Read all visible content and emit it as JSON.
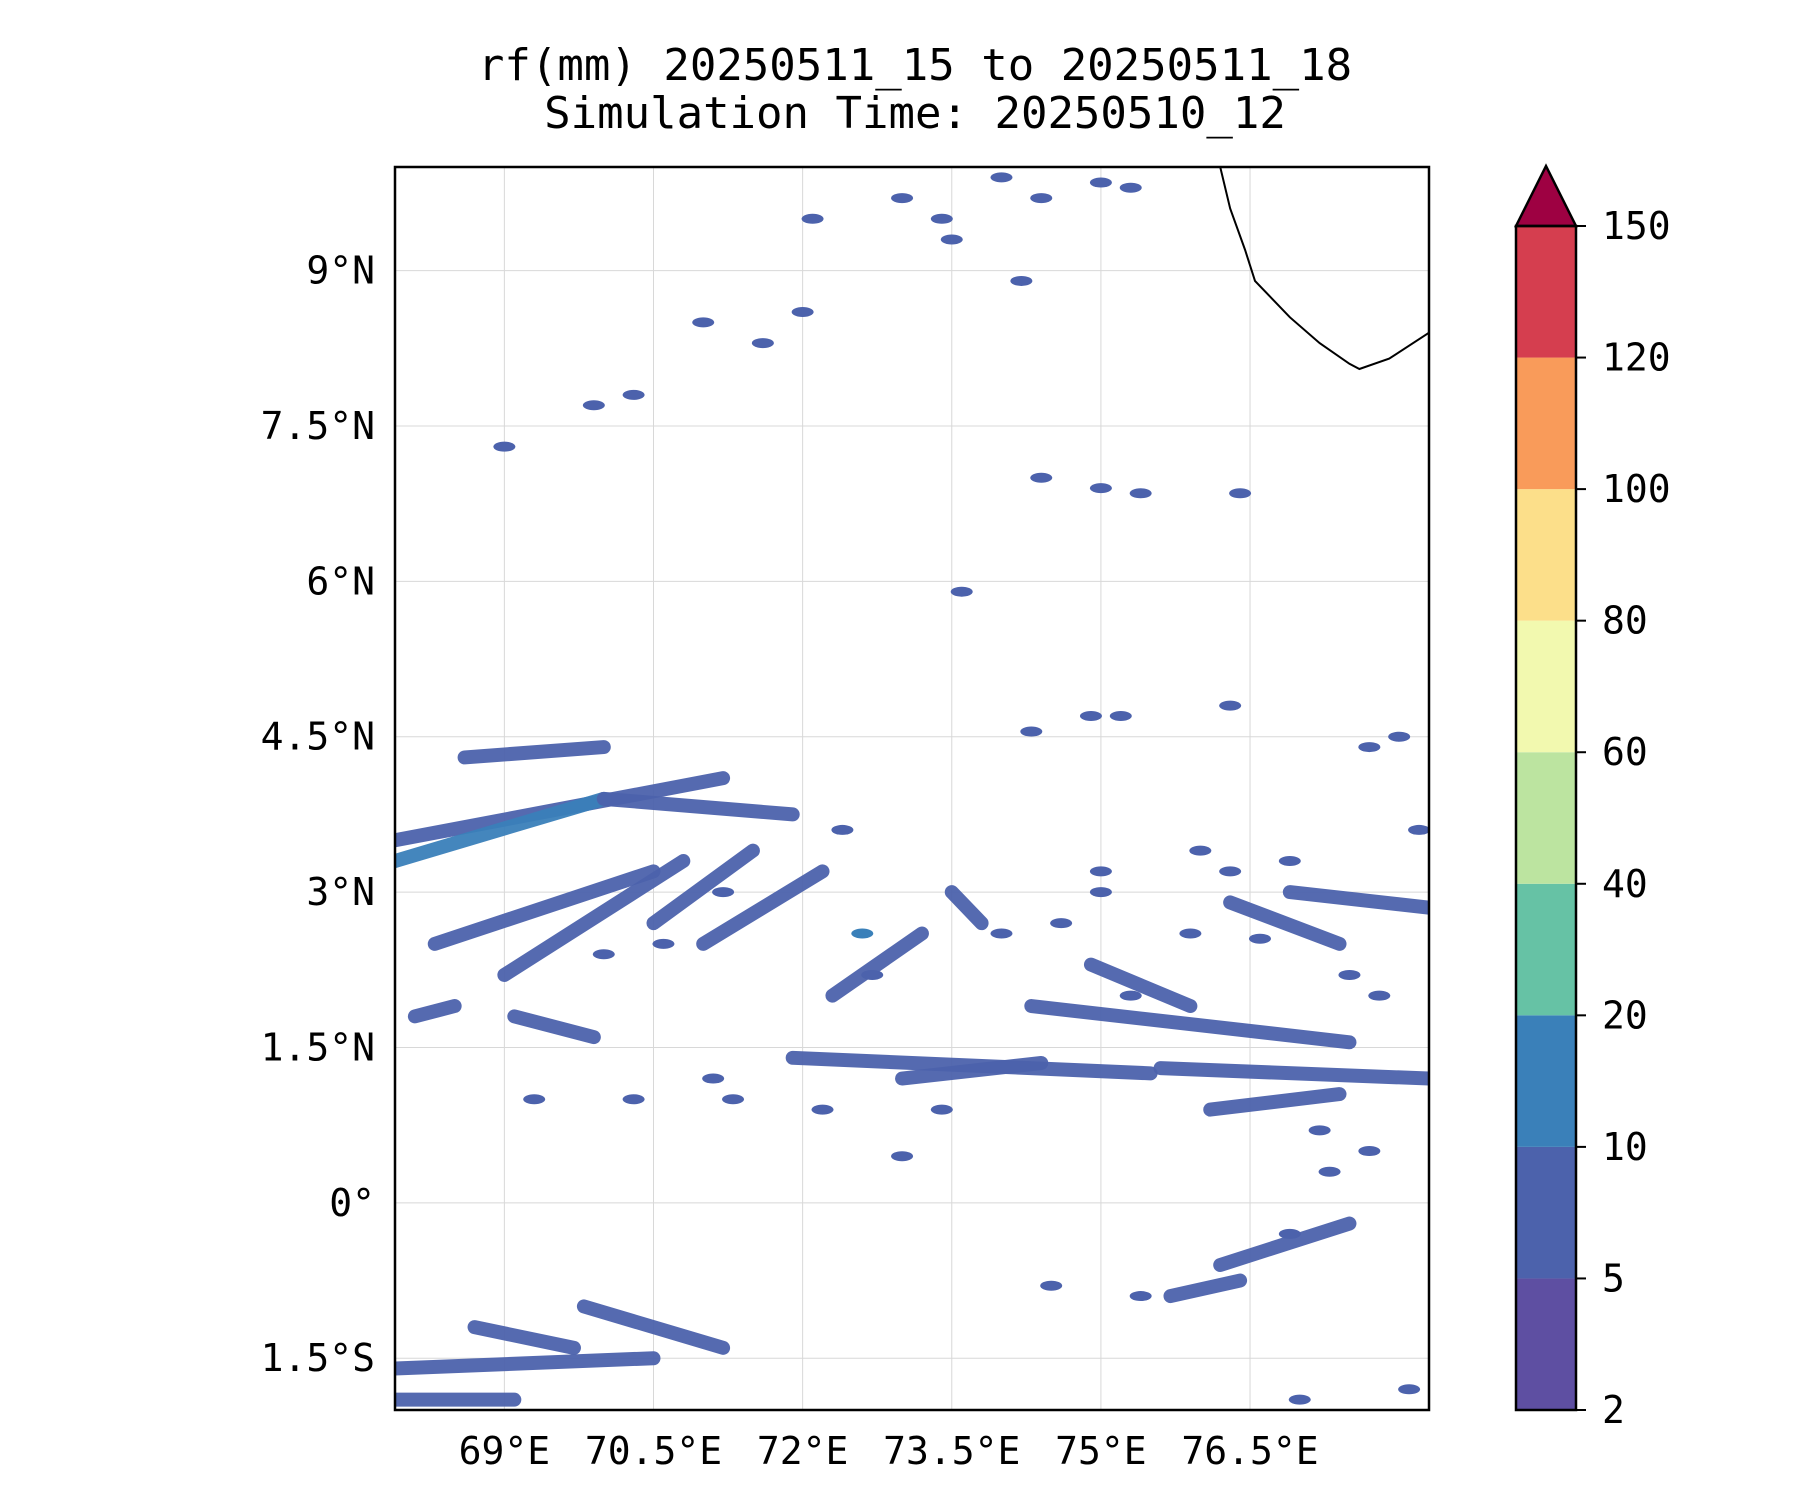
{
  "figure": {
    "title_line1": "rf(mm) 20250511_15 to 20250511_18",
    "title_line2": "Simulation Time: 20250510_12"
  },
  "map": {
    "lon_range": [
      67.9,
      78.3
    ],
    "lat_range": [
      -2.0,
      10.0
    ],
    "x_ticks": [
      {
        "value": 69.0,
        "label": "69°E"
      },
      {
        "value": 70.5,
        "label": "70.5°E"
      },
      {
        "value": 72.0,
        "label": "72°E"
      },
      {
        "value": 73.5,
        "label": "73.5°E"
      },
      {
        "value": 75.0,
        "label": "75°E"
      },
      {
        "value": 76.5,
        "label": "76.5°E"
      }
    ],
    "y_ticks": [
      {
        "value": 9.0,
        "label": "9°N"
      },
      {
        "value": 7.5,
        "label": "7.5°N"
      },
      {
        "value": 6.0,
        "label": "6°N"
      },
      {
        "value": 4.5,
        "label": "4.5°N"
      },
      {
        "value": 3.0,
        "label": "3°N"
      },
      {
        "value": 1.5,
        "label": "1.5°N"
      },
      {
        "value": 0.0,
        "label": "0°"
      },
      {
        "value": -1.5,
        "label": "1.5°S"
      }
    ],
    "gridlines": true
  },
  "colorbar": {
    "extend": "max",
    "levels": [
      {
        "value": 2,
        "label": "2"
      },
      {
        "value": 5,
        "label": "5"
      },
      {
        "value": 10,
        "label": "10"
      },
      {
        "value": 20,
        "label": "20"
      },
      {
        "value": 40,
        "label": "40"
      },
      {
        "value": 60,
        "label": "60"
      },
      {
        "value": 80,
        "label": "80"
      },
      {
        "value": 100,
        "label": "100"
      },
      {
        "value": 120,
        "label": "120"
      },
      {
        "value": 150,
        "label": "150"
      }
    ],
    "colors": [
      "#5e4fa2",
      "#4c62ac",
      "#3a80b9",
      "#66c2a5",
      "#bce4a0",
      "#f2f9af",
      "#fcdf8a",
      "#f99b5a",
      "#d53e4f"
    ],
    "extend_color": "#9e0142"
  },
  "chart_data": {
    "type": "heatmap",
    "variable": "rf(mm)",
    "colorbar_max_arrow": true,
    "rain_bands": [
      {
        "from": [
          67.9,
          3.5
        ],
        "to": [
          71.2,
          4.1
        ],
        "value": 5
      },
      {
        "from": [
          67.9,
          3.3
        ],
        "to": [
          70.0,
          3.9
        ],
        "value": 10
      },
      {
        "from": [
          68.6,
          4.3
        ],
        "to": [
          70.0,
          4.4
        ],
        "value": 5
      },
      {
        "from": [
          70.0,
          3.9
        ],
        "to": [
          71.9,
          3.75
        ],
        "value": 5
      },
      {
        "from": [
          68.3,
          2.5
        ],
        "to": [
          70.5,
          3.2
        ],
        "value": 5
      },
      {
        "from": [
          69.0,
          2.2
        ],
        "to": [
          70.8,
          3.3
        ],
        "value": 5
      },
      {
        "from": [
          70.5,
          2.7
        ],
        "to": [
          71.5,
          3.4
        ],
        "value": 5
      },
      {
        "from": [
          71.0,
          2.5
        ],
        "to": [
          72.2,
          3.2
        ],
        "value": 5
      },
      {
        "from": [
          72.3,
          2.0
        ],
        "to": [
          73.2,
          2.6
        ],
        "value": 5
      },
      {
        "from": [
          69.1,
          1.8
        ],
        "to": [
          69.9,
          1.6
        ],
        "value": 5
      },
      {
        "from": [
          68.1,
          1.8
        ],
        "to": [
          68.5,
          1.9
        ],
        "value": 5
      },
      {
        "from": [
          71.9,
          1.4
        ],
        "to": [
          75.5,
          1.25
        ],
        "value": 5
      },
      {
        "from": [
          73.0,
          1.2
        ],
        "to": [
          74.4,
          1.35
        ],
        "value": 5
      },
      {
        "from": [
          74.3,
          1.9
        ],
        "to": [
          77.5,
          1.55
        ],
        "value": 5
      },
      {
        "from": [
          75.6,
          1.3
        ],
        "to": [
          78.3,
          1.2
        ],
        "value": 5
      },
      {
        "from": [
          76.9,
          3.0
        ],
        "to": [
          78.3,
          2.85
        ],
        "value": 5
      },
      {
        "from": [
          76.1,
          0.9
        ],
        "to": [
          77.4,
          1.05
        ],
        "value": 5
      },
      {
        "from": [
          74.9,
          2.3
        ],
        "to": [
          75.9,
          1.9
        ],
        "value": 5
      },
      {
        "from": [
          67.9,
          -1.6
        ],
        "to": [
          70.5,
          -1.5
        ],
        "value": 5
      },
      {
        "from": [
          68.7,
          -1.2
        ],
        "to": [
          69.7,
          -1.4
        ],
        "value": 5
      },
      {
        "from": [
          69.8,
          -1.0
        ],
        "to": [
          71.2,
          -1.4
        ],
        "value": 5
      },
      {
        "from": [
          67.9,
          -1.9
        ],
        "to": [
          69.1,
          -1.9
        ],
        "value": 5
      },
      {
        "from": [
          76.2,
          -0.6
        ],
        "to": [
          77.5,
          -0.2
        ],
        "value": 5
      },
      {
        "from": [
          75.7,
          -0.9
        ],
        "to": [
          76.4,
          -0.75
        ],
        "value": 5
      },
      {
        "from": [
          73.8,
          2.7
        ],
        "to": [
          73.5,
          3.0
        ],
        "value": 5
      },
      {
        "from": [
          76.3,
          2.9
        ],
        "to": [
          77.4,
          2.5
        ],
        "value": 5
      }
    ],
    "rain_cells": [
      [
        72.4,
        3.6,
        5
      ],
      [
        71.2,
        3.0,
        5
      ],
      [
        72.6,
        2.6,
        10
      ],
      [
        70.0,
        2.4,
        5
      ],
      [
        70.6,
        2.5,
        5
      ],
      [
        69.3,
        1.0,
        5
      ],
      [
        70.3,
        1.0,
        5
      ],
      [
        71.3,
        1.0,
        5
      ],
      [
        72.2,
        0.9,
        5
      ],
      [
        73.4,
        0.9,
        5
      ],
      [
        75.3,
        2.0,
        5
      ],
      [
        74.0,
        2.6,
        5
      ],
      [
        74.6,
        2.7,
        5
      ],
      [
        75.0,
        3.0,
        5
      ],
      [
        75.9,
        2.6,
        5
      ],
      [
        76.6,
        2.55,
        5
      ],
      [
        76.9,
        3.3,
        5
      ],
      [
        77.2,
        0.7,
        5
      ],
      [
        77.7,
        0.5,
        5
      ],
      [
        75.0,
        6.9,
        5
      ],
      [
        75.4,
        6.85,
        5
      ],
      [
        76.4,
        6.85,
        5
      ],
      [
        74.4,
        7.0,
        5
      ],
      [
        74.9,
        4.7,
        5
      ],
      [
        75.2,
        4.7,
        5
      ],
      [
        76.3,
        4.8,
        5
      ],
      [
        74.3,
        4.55,
        5
      ],
      [
        78.0,
        4.5,
        5
      ],
      [
        77.7,
        4.4,
        5
      ],
      [
        78.2,
        3.6,
        5
      ],
      [
        74.0,
        9.9,
        5
      ],
      [
        74.4,
        9.7,
        5
      ],
      [
        75.0,
        9.85,
        5
      ],
      [
        75.3,
        9.8,
        5
      ],
      [
        73.0,
        9.7,
        5
      ],
      [
        72.1,
        9.5,
        5
      ],
      [
        73.4,
        9.5,
        5
      ],
      [
        71.0,
        8.5,
        5
      ],
      [
        71.6,
        8.3,
        5
      ],
      [
        72.0,
        8.6,
        5
      ],
      [
        69.9,
        7.7,
        5
      ],
      [
        70.3,
        7.8,
        5
      ],
      [
        69.0,
        7.3,
        5
      ],
      [
        74.2,
        8.9,
        5
      ],
      [
        73.5,
        9.3,
        5
      ],
      [
        76.0,
        3.4,
        5
      ],
      [
        76.3,
        3.2,
        5
      ],
      [
        75.0,
        3.2,
        5
      ],
      [
        73.0,
        0.45,
        5
      ],
      [
        74.5,
        -0.8,
        5
      ],
      [
        77.0,
        -1.9,
        5
      ],
      [
        78.1,
        -1.8,
        5
      ],
      [
        71.1,
        1.2,
        5
      ],
      [
        72.7,
        2.2,
        5
      ],
      [
        77.5,
        2.2,
        5
      ],
      [
        77.8,
        2.0,
        5
      ],
      [
        77.3,
        0.3,
        5
      ],
      [
        76.9,
        -0.3,
        5
      ],
      [
        75.4,
        -0.9,
        5
      ],
      [
        73.6,
        5.9,
        5
      ]
    ],
    "land_areas": [
      {
        "name": "southern India coast",
        "polyline": [
          [
            76.2,
            10.0
          ],
          [
            76.3,
            9.6
          ],
          [
            76.45,
            9.2
          ],
          [
            76.55,
            8.9
          ],
          [
            76.9,
            8.55
          ],
          [
            77.2,
            8.3
          ],
          [
            77.5,
            8.1
          ],
          [
            77.6,
            8.05
          ],
          [
            77.9,
            8.15
          ],
          [
            78.3,
            8.4
          ]
        ]
      }
    ]
  }
}
